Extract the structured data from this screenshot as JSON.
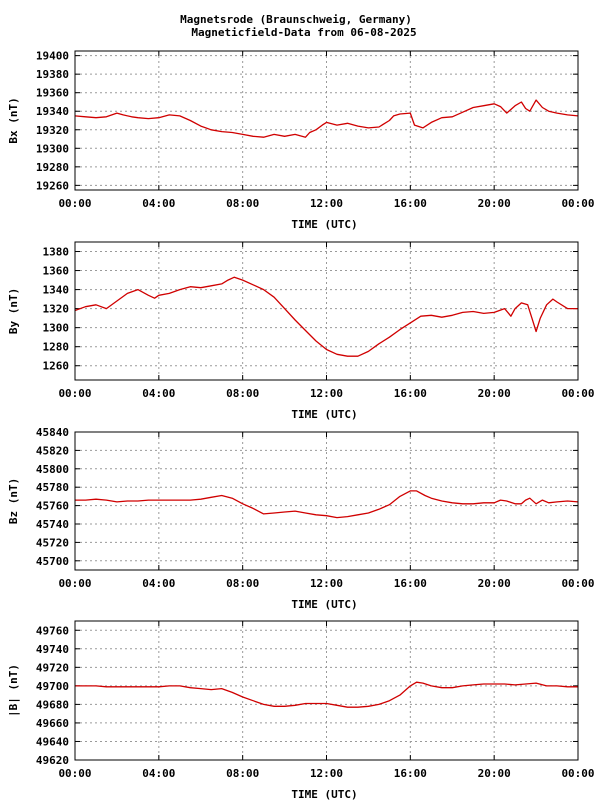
{
  "title_line1": "Magnetsrode (Braunschweig, Germany)",
  "title_line2": "Magneticfield-Data from 06-08-2025",
  "series_color": "#d00000",
  "chart_data": [
    {
      "type": "line",
      "title": "Magnetsrode (Braunschweig, Germany) Magneticfield-Data from 06-08-2025",
      "xlabel": "TIME (UTC)",
      "ylabel": "Bx (nT)",
      "xlim": [
        0,
        24
      ],
      "ylim": [
        19255,
        19405
      ],
      "xticks": [
        "00:00",
        "04:00",
        "08:00",
        "12:00",
        "16:00",
        "20:00",
        "00:00"
      ],
      "yticks": [
        19260,
        19280,
        19300,
        19320,
        19340,
        19360,
        19380,
        19400
      ],
      "grid": true,
      "x": [
        0,
        0.5,
        1,
        1.5,
        2,
        2.3,
        2.7,
        3,
        3.5,
        4,
        4.5,
        5,
        5.5,
        6,
        6.5,
        7,
        7.5,
        8,
        8.5,
        9,
        9.5,
        10,
        10.5,
        11,
        11.2,
        11.5,
        11.8,
        12,
        12.5,
        13,
        13.5,
        14,
        14.5,
        15,
        15.2,
        15.5,
        16,
        16.2,
        16.6,
        17,
        17.5,
        18,
        18.5,
        19,
        19.5,
        20,
        20.3,
        20.6,
        21,
        21.3,
        21.5,
        21.7,
        22,
        22.3,
        22.6,
        23,
        23.5,
        24
      ],
      "values": [
        19335,
        19334,
        19333,
        19334,
        19338,
        19336,
        19334,
        19333,
        19332,
        19333,
        19336,
        19335,
        19330,
        19324,
        19320,
        19318,
        19317,
        19315,
        19313,
        19312,
        19315,
        19313,
        19315,
        19312,
        19317,
        19320,
        19325,
        19328,
        19325,
        19327,
        19324,
        19322,
        19323,
        19330,
        19335,
        19337,
        19338,
        19325,
        19322,
        19328,
        19333,
        19334,
        19339,
        19344,
        19346,
        19348,
        19345,
        19338,
        19346,
        19350,
        19343,
        19340,
        19352,
        19344,
        19340,
        19338,
        19336,
        19335
      ]
    },
    {
      "type": "line",
      "xlabel": "TIME (UTC)",
      "ylabel": "By (nT)",
      "xlim": [
        0,
        24
      ],
      "ylim": [
        1245,
        1390
      ],
      "xticks": [
        "00:00",
        "04:00",
        "08:00",
        "12:00",
        "16:00",
        "20:00",
        "00:00"
      ],
      "yticks": [
        1260,
        1280,
        1300,
        1320,
        1340,
        1360,
        1380
      ],
      "grid": true,
      "x": [
        0,
        0.5,
        1,
        1.5,
        2,
        2.5,
        3,
        3.5,
        3.8,
        4,
        4.5,
        5,
        5.5,
        6,
        6.5,
        7,
        7.3,
        7.6,
        8,
        8.5,
        9,
        9.5,
        10,
        10.5,
        11,
        11.5,
        12,
        12.5,
        13,
        13.5,
        14,
        14.5,
        15,
        15.5,
        16,
        16.5,
        17,
        17.5,
        18,
        18.5,
        19,
        19.5,
        20,
        20.5,
        20.8,
        21,
        21.3,
        21.6,
        21.8,
        22,
        22.2,
        22.5,
        22.8,
        23,
        23.5,
        24
      ],
      "values": [
        1318,
        1322,
        1324,
        1320,
        1328,
        1336,
        1340,
        1334,
        1331,
        1334,
        1336,
        1340,
        1343,
        1342,
        1344,
        1346,
        1350,
        1353,
        1350,
        1345,
        1340,
        1332,
        1320,
        1308,
        1297,
        1286,
        1277,
        1272,
        1270,
        1270,
        1275,
        1283,
        1290,
        1298,
        1305,
        1312,
        1313,
        1311,
        1313,
        1316,
        1317,
        1315,
        1316,
        1320,
        1312,
        1320,
        1326,
        1324,
        1310,
        1296,
        1310,
        1324,
        1330,
        1327,
        1320,
        1320
      ]
    },
    {
      "type": "line",
      "xlabel": "TIME (UTC)",
      "ylabel": "Bz (nT)",
      "xlim": [
        0,
        24
      ],
      "ylim": [
        45690,
        45840
      ],
      "xticks": [
        "00:00",
        "04:00",
        "08:00",
        "12:00",
        "16:00",
        "20:00",
        "00:00"
      ],
      "yticks": [
        45700,
        45720,
        45740,
        45760,
        45780,
        45800,
        45820,
        45840
      ],
      "grid": true,
      "x": [
        0,
        0.5,
        1,
        1.5,
        2,
        2.5,
        3,
        3.5,
        4,
        4.5,
        5,
        5.5,
        6,
        6.5,
        7,
        7.5,
        8,
        8.5,
        9,
        9.5,
        10,
        10.5,
        11,
        11.5,
        12,
        12.5,
        13,
        13.5,
        14,
        14.5,
        15,
        15.5,
        16,
        16.3,
        16.7,
        17,
        17.5,
        18,
        18.5,
        19,
        19.5,
        20,
        20.3,
        20.6,
        21,
        21.3,
        21.5,
        21.7,
        22,
        22.3,
        22.6,
        23,
        23.5,
        24
      ],
      "values": [
        45766,
        45766,
        45767,
        45766,
        45764,
        45765,
        45765,
        45766,
        45766,
        45766,
        45766,
        45766,
        45767,
        45769,
        45771,
        45768,
        45762,
        45757,
        45751,
        45752,
        45753,
        45754,
        45752,
        45750,
        45749,
        45747,
        45748,
        45750,
        45752,
        45756,
        45761,
        45770,
        45776,
        45776,
        45771,
        45768,
        45765,
        45763,
        45762,
        45762,
        45763,
        45763,
        45766,
        45765,
        45762,
        45762,
        45766,
        45768,
        45762,
        45766,
        45763,
        45764,
        45765,
        45764
      ]
    },
    {
      "type": "line",
      "xlabel": "TIME (UTC)",
      "ylabel": "|B| (nT)",
      "xlim": [
        0,
        24
      ],
      "ylim": [
        49620,
        49770
      ],
      "xticks": [
        "00:00",
        "04:00",
        "08:00",
        "12:00",
        "16:00",
        "20:00",
        "00:00"
      ],
      "yticks": [
        49620,
        49640,
        49660,
        49680,
        49700,
        49720,
        49740,
        49760
      ],
      "grid": true,
      "x": [
        0,
        0.5,
        1,
        1.5,
        2,
        2.5,
        3,
        3.5,
        4,
        4.5,
        5,
        5.5,
        6,
        6.5,
        7,
        7.5,
        8,
        8.5,
        9,
        9.5,
        10,
        10.5,
        11,
        11.5,
        12,
        12.5,
        13,
        13.5,
        14,
        14.5,
        15,
        15.5,
        16,
        16.3,
        16.6,
        17,
        17.5,
        18,
        18.5,
        19,
        19.5,
        20,
        20.5,
        21,
        21.5,
        22,
        22.5,
        23,
        23.5,
        24
      ],
      "values": [
        49700,
        49700,
        49700,
        49699,
        49699,
        49699,
        49699,
        49699,
        49699,
        49700,
        49700,
        49698,
        49697,
        49696,
        49697,
        49693,
        49688,
        49684,
        49680,
        49678,
        49678,
        49679,
        49681,
        49681,
        49681,
        49679,
        49677,
        49677,
        49678,
        49680,
        49684,
        49690,
        49700,
        49704,
        49703,
        49700,
        49698,
        49698,
        49700,
        49701,
        49702,
        49702,
        49702,
        49701,
        49702,
        49703,
        49700,
        49700,
        49699,
        49699
      ]
    }
  ]
}
